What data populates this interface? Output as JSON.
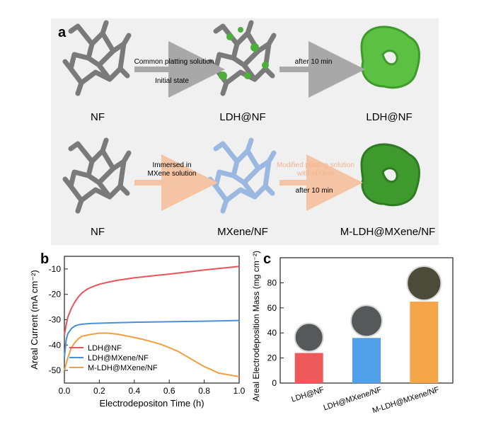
{
  "panel_a": {
    "label": "a",
    "row1": {
      "left": "NF",
      "middle": "LDH@NF",
      "right": "LDH@NF",
      "arrow1_top": "Common platting solution",
      "arrow1_bottom": "Initial state",
      "arrow2_top": "after 10 min"
    },
    "row2": {
      "left": "NF",
      "middle": "MXene/NF",
      "right": "M-LDH@MXene/NF",
      "arrow1_top_line1": "Immersed in",
      "arrow1_top_line2": "MXene solution",
      "arrow2_top_line1": "Modified platting solution",
      "arrow2_top_line2": "with MXene",
      "arrow2_bottom": "after 10 min"
    },
    "colors": {
      "gray_arrow": "#a8a8a8",
      "peach_arrow": "#f4c4a4",
      "peach_text": "#f2b48c",
      "green": "#4caf3a",
      "blue": "#9ab8e0",
      "gray_struct": "#7a7a7a"
    }
  },
  "panel_b": {
    "label": "b",
    "chart_data": {
      "type": "line",
      "xlabel": "Electrodepositon Time (h)",
      "ylabel": "Areal Current (mA cm⁻²)",
      "xlim": [
        0.0,
        1.0
      ],
      "ylim": [
        -55,
        -5
      ],
      "xticks": [
        "0.0",
        "0.2",
        "0.4",
        "0.6",
        "0.8",
        "1.0"
      ],
      "yticks": [
        "-10",
        "-20",
        "-30",
        "-40",
        "-50"
      ],
      "series": [
        {
          "name": "LDH@NF",
          "color": "#e8535c",
          "x": [
            0.0,
            0.01,
            0.02,
            0.04,
            0.06,
            0.08,
            0.1,
            0.13,
            0.16,
            0.2,
            0.25,
            0.3,
            0.4,
            0.5,
            0.6,
            0.7,
            0.8,
            0.9,
            1.0
          ],
          "y": [
            -36,
            -32,
            -29,
            -25.5,
            -23,
            -21,
            -19.5,
            -18,
            -17,
            -16,
            -15.2,
            -14.5,
            -13.5,
            -12.7,
            -12,
            -11.2,
            -10.4,
            -9.7,
            -9
          ]
        },
        {
          "name": "LDH@MXene/NF",
          "color": "#4a90d9",
          "x": [
            0.0,
            0.01,
            0.02,
            0.04,
            0.06,
            0.08,
            0.1,
            0.15,
            0.2,
            0.3,
            0.4,
            0.6,
            0.8,
            1.0
          ],
          "y": [
            -45,
            -38,
            -35.5,
            -33.5,
            -32.5,
            -32,
            -31.8,
            -31.5,
            -31.4,
            -31.2,
            -31,
            -30.8,
            -30.6,
            -30.3
          ]
        },
        {
          "name": "M-LDH@MXene/NF",
          "color": "#f0a040",
          "x": [
            0.0,
            0.02,
            0.04,
            0.06,
            0.08,
            0.1,
            0.15,
            0.2,
            0.25,
            0.3,
            0.35,
            0.4,
            0.45,
            0.5,
            0.55,
            0.6,
            0.65,
            0.7,
            0.75,
            0.8,
            0.85,
            0.88,
            0.92,
            0.96,
            1.0
          ],
          "y": [
            -50,
            -45,
            -41,
            -39,
            -37.5,
            -36.5,
            -35.8,
            -35.3,
            -35.3,
            -35.7,
            -36.3,
            -37,
            -37.8,
            -38.7,
            -39.7,
            -41,
            -42.5,
            -44.5,
            -46.5,
            -48.5,
            -50,
            -51,
            -51.5,
            -52,
            -52.5
          ]
        }
      ]
    }
  },
  "panel_c": {
    "label": "c",
    "chart_data": {
      "type": "bar",
      "ylabel": "Areal Electrodeposition Mass (mg cm⁻²)",
      "ylim": [
        0,
        100
      ],
      "yticks": [
        "0",
        "20",
        "40",
        "60",
        "80"
      ],
      "categories": [
        "LDH@NF",
        "LDH@MXene/NF",
        "M-LDH@MXene/NF"
      ],
      "values": [
        24,
        36,
        65
      ],
      "colors": [
        "#ee5a5a",
        "#4fa0e8",
        "#f6a64a"
      ]
    }
  }
}
